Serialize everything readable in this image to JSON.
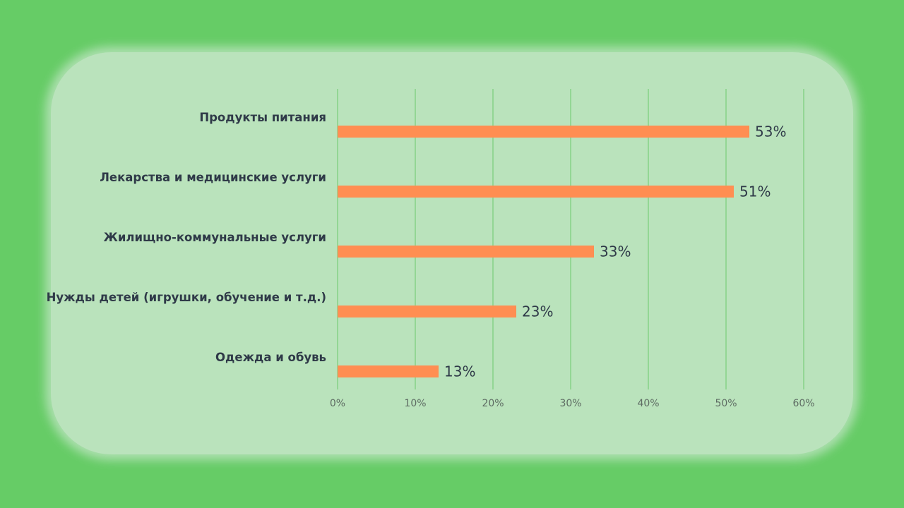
{
  "colors": {
    "page_background": "#66cc66",
    "card_background": "#bae3bc",
    "bar": "#ff8e52",
    "gridline": "#6cc86c",
    "label_text": "#2f3a48",
    "tick_text": "#5e6c63"
  },
  "chart_data": {
    "type": "bar",
    "orientation": "horizontal",
    "categories": [
      "Продукты питания",
      "Лекарства и медицинские услуги",
      "Жилищно-коммунальные услуги",
      "Нужды детей (игрушки, обучение и т.д.)",
      "Одежда и обувь"
    ],
    "values": [
      53,
      51,
      33,
      23,
      13
    ],
    "value_labels": [
      "53%",
      "51%",
      "33%",
      "23%",
      "13%"
    ],
    "xlim": [
      0,
      60
    ],
    "xticks": [
      0,
      10,
      20,
      30,
      40,
      50,
      60
    ],
    "xtick_labels": [
      "0%",
      "10%",
      "20%",
      "30%",
      "40%",
      "50%",
      "60%"
    ],
    "grid": "vertical",
    "legend": "none",
    "title": "",
    "xlabel": "",
    "ylabel": ""
  }
}
